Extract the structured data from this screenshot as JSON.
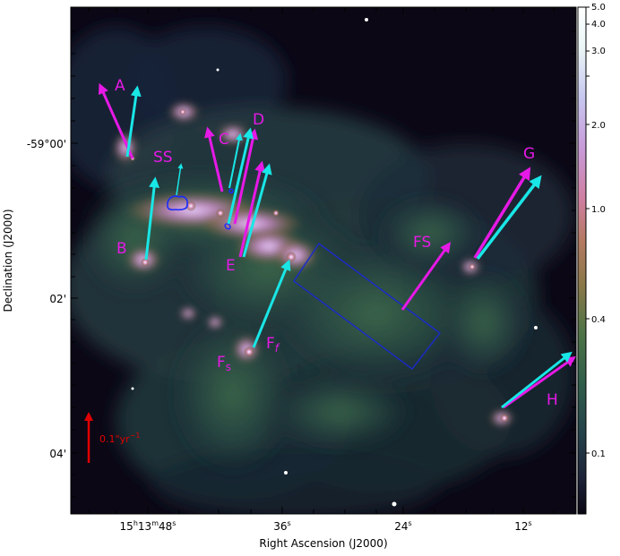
{
  "axes": {
    "xlabel": "Right Ascension (J2000)",
    "ylabel": "Declination (J2000)",
    "x_ticks": [
      {
        "h": "15",
        "m": "13",
        "s": "48",
        "sup_h": "h",
        "sup_m": "m",
        "sup_s": "s"
      },
      {
        "s": "36",
        "sup_s": "s"
      },
      {
        "s": "24",
        "sup_s": "s"
      },
      {
        "s": "12",
        "sup_s": "s"
      }
    ],
    "y_ticks": [
      "-59°00'",
      "02'",
      "04'"
    ]
  },
  "colorbar": {
    "ticks": [
      "5.0",
      "4.0",
      "3.0",
      "2.0",
      "1.0",
      "0.4",
      "0.1"
    ],
    "colors": [
      "#0a0614",
      "#1c2238",
      "#24424a",
      "#2f5e4a",
      "#4f7446",
      "#8a7848",
      "#b47a62",
      "#cf7fa0",
      "#c89ad8",
      "#c7c6f0",
      "#eaf6f6",
      "#ffffff"
    ]
  },
  "labels": {
    "A": "A",
    "B": "B",
    "C": "C",
    "D": "D",
    "E": "E",
    "SS": "SS",
    "FS": "FS",
    "G": "G",
    "H": "H",
    "Fs": "F",
    "Fs_sub": "s",
    "Ff": "F",
    "Ff_sub": "f"
  },
  "scale_bar": {
    "value": "0.1",
    "unit_sec": "\"",
    "unit": "yr",
    "exponent": "−1"
  },
  "colors": {
    "magenta": "#e619e6",
    "cyan": "#19e6e6",
    "red": "#e00000",
    "contour": "#1a2aff",
    "box": "#1a2acc"
  }
}
